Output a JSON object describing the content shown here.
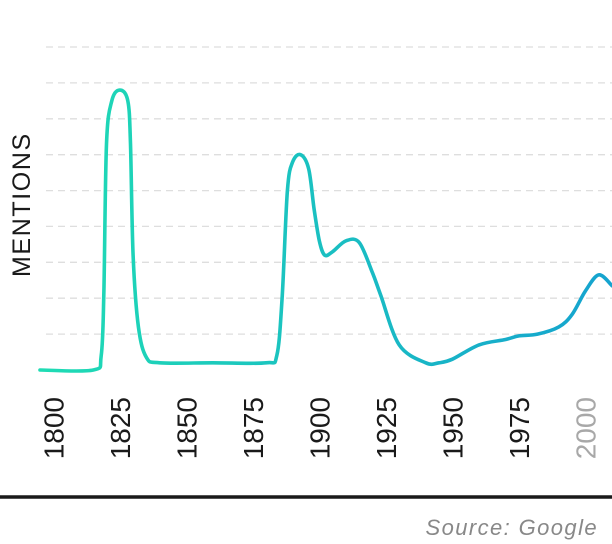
{
  "chart_data": {
    "type": "line",
    "title": "",
    "xlabel": "",
    "ylabel": "MENTIONS",
    "source": "Source: Google",
    "grid": "horizontal-dashed",
    "y_tick_labels": false,
    "xlim": [
      1795,
      2010
    ],
    "ylim": [
      0,
      9
    ],
    "x_ticks": [
      "1800",
      "1825",
      "1850",
      "1875",
      "1900",
      "1925",
      "1950",
      "1975",
      "2000"
    ],
    "x_tick_colors": [
      "#1a1a1a",
      "#1a1a1a",
      "#1a1a1a",
      "#1a1a1a",
      "#1a1a1a",
      "#1a1a1a",
      "#1a1a1a",
      "#1a1a1a",
      "#a8a8a8"
    ],
    "gradient": [
      "#1fdcb4",
      "#15a3cf"
    ],
    "series": [
      {
        "x": [
          1795,
          1815,
          1818,
          1819,
          1820,
          1822,
          1825,
          1828,
          1829,
          1830,
          1832,
          1835,
          1840,
          1860,
          1880,
          1884,
          1886,
          1888,
          1890,
          1893,
          1896,
          1898,
          1900,
          1902,
          1905,
          1910,
          1915,
          1920,
          1923,
          1930,
          1940,
          1945,
          1950,
          1960,
          1970,
          1975,
          1982,
          1990,
          1995,
          2000,
          2005,
          2010
        ],
        "y": [
          0.0,
          0.0,
          0.4,
          2.2,
          6.3,
          7.5,
          7.8,
          7.5,
          6.3,
          3.2,
          1.2,
          0.35,
          0.2,
          0.2,
          0.2,
          0.4,
          2.0,
          5.0,
          5.8,
          6.0,
          5.6,
          4.5,
          3.6,
          3.2,
          3.3,
          3.6,
          3.55,
          2.7,
          2.1,
          0.7,
          0.2,
          0.2,
          0.3,
          0.7,
          0.85,
          0.95,
          1.0,
          1.2,
          1.55,
          2.2,
          2.65,
          2.35
        ]
      }
    ]
  }
}
